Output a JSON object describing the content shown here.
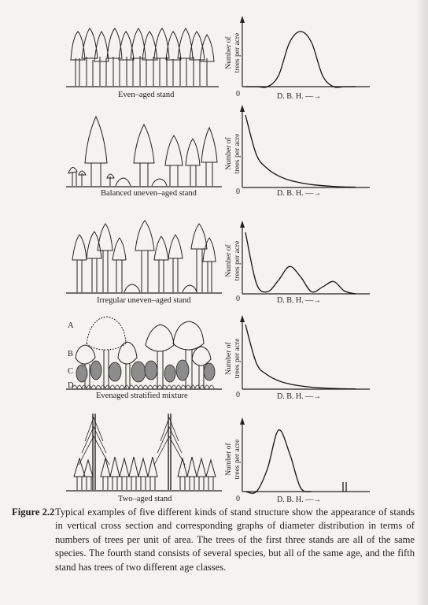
{
  "figure": {
    "label": "Figure 2.2",
    "caption": "Typical examples of five different kinds of stand structure show the appearance of stands in vertical cross section and corresponding graphs of diameter distribution in terms of numbers of trees per unit of area. The trees of the first three stands are all of the same species. The fourth stand consists of several species, but all of the same age, and the fifth stand has trees of two different age classes."
  },
  "axis_text": {
    "ylabel_line1": "Number of",
    "ylabel_line2": "trees per acre",
    "origin": "0",
    "xlabel": "D. B. H."
  },
  "panels": [
    {
      "id": "even-aged",
      "stand_label": "Even–aged stand"
    },
    {
      "id": "balanced",
      "stand_label": "Balanced uneven–aged stand"
    },
    {
      "id": "irregular",
      "stand_label": "Irregular uneven–aged stand"
    },
    {
      "id": "stratified",
      "stand_label": "Evenaged stratified mixture",
      "layers": [
        "A",
        "B",
        "C",
        "D"
      ]
    },
    {
      "id": "two-aged",
      "stand_label": "Two–aged stand"
    }
  ],
  "chart_data": [
    {
      "type": "line",
      "curve": "single-hump",
      "x": [
        0,
        1,
        2,
        3,
        4,
        5,
        6,
        7,
        8,
        9,
        10
      ],
      "y": [
        0,
        0,
        0,
        1,
        4,
        5,
        4,
        1,
        0,
        0,
        0
      ]
    },
    {
      "type": "line",
      "curve": "reverse-J",
      "x": [
        0,
        1,
        2,
        3,
        4,
        5,
        6,
        7,
        8,
        9,
        10
      ],
      "y": [
        10,
        4.5,
        2.6,
        1.6,
        1.0,
        0.65,
        0.4,
        0.25,
        0.15,
        0.08,
        0.05
      ]
    },
    {
      "type": "line",
      "curve": "multi-modal",
      "x": [
        0,
        1,
        2,
        3,
        4,
        5,
        6,
        7,
        8,
        9,
        10
      ],
      "y": [
        9,
        1.5,
        0.3,
        2,
        4,
        2.5,
        0.3,
        1,
        1.8,
        0.4,
        0
      ]
    },
    {
      "type": "line",
      "curve": "reverse-J",
      "x": [
        0,
        1,
        2,
        3,
        4,
        5,
        6,
        7,
        8,
        9,
        10
      ],
      "y": [
        10,
        4,
        2.2,
        1.3,
        0.8,
        0.5,
        0.3,
        0.18,
        0.1,
        0.06,
        0.04
      ]
    },
    {
      "type": "line",
      "curve": "hump-plus-tail",
      "x": [
        0,
        1,
        2,
        3,
        4,
        5,
        6,
        7,
        8,
        9,
        10
      ],
      "y": [
        0,
        0,
        3,
        8,
        5,
        0.5,
        0,
        0,
        0,
        0,
        0.8
      ]
    }
  ]
}
